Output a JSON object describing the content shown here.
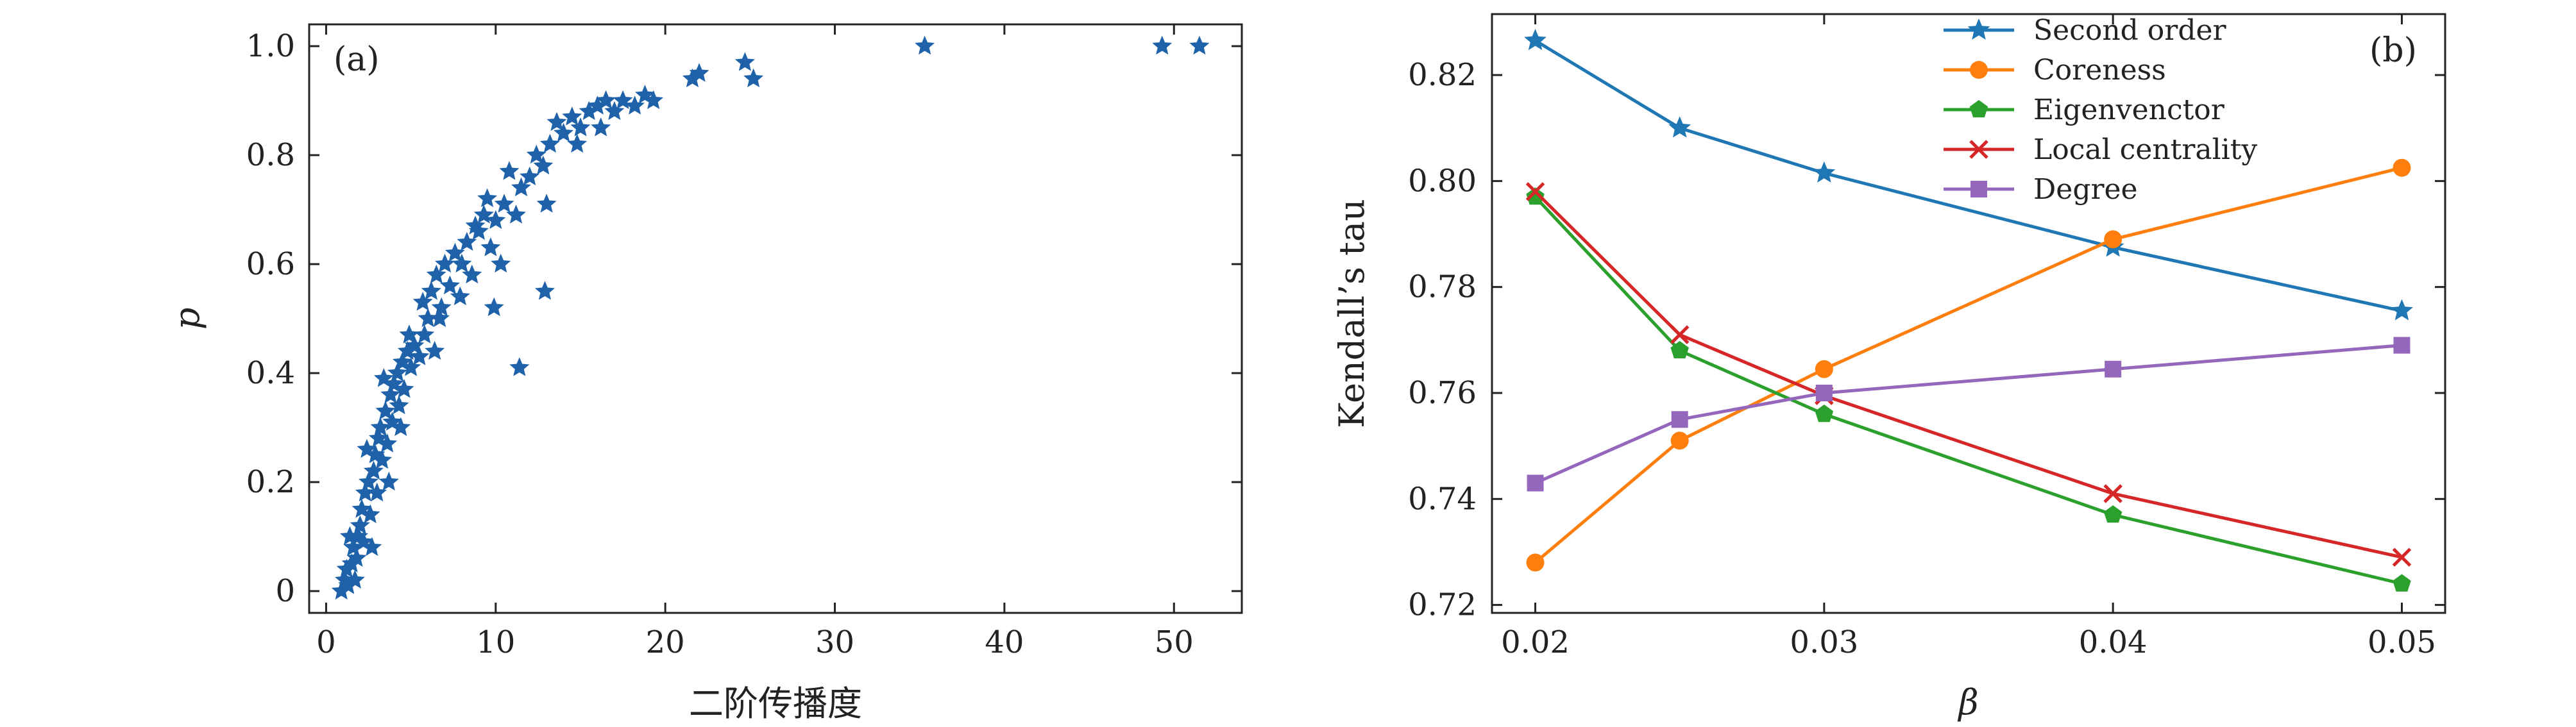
{
  "chart_data": [
    {
      "type": "scatter",
      "panel_label": "(a)",
      "xlabel": "二阶传播度",
      "ylabel": "p",
      "xlim": [
        -1,
        54
      ],
      "ylim": [
        -0.04,
        1.04
      ],
      "xticks": [
        0,
        10,
        20,
        30,
        40,
        50
      ],
      "yticks": [
        0,
        0.2,
        0.4,
        0.6,
        0.8,
        1.0
      ],
      "ytick_labels": [
        "0",
        "0.2",
        "0.4",
        "0.6",
        "0.8",
        "1.0"
      ],
      "grid": false,
      "marker": "star",
      "color": "#1f62aa",
      "points": [
        [
          0.9,
          0.0
        ],
        [
          1.1,
          0.02
        ],
        [
          1.2,
          0.04
        ],
        [
          1.3,
          0.01
        ],
        [
          1.5,
          0.05
        ],
        [
          1.6,
          0.08
        ],
        [
          1.8,
          0.06
        ],
        [
          1.9,
          0.1
        ],
        [
          2.0,
          0.12
        ],
        [
          2.1,
          0.15
        ],
        [
          2.2,
          0.09
        ],
        [
          2.3,
          0.18
        ],
        [
          2.5,
          0.2
        ],
        [
          2.6,
          0.14
        ],
        [
          2.8,
          0.22
        ],
        [
          2.9,
          0.25
        ],
        [
          3.0,
          0.18
        ],
        [
          3.1,
          0.28
        ],
        [
          3.2,
          0.3
        ],
        [
          3.3,
          0.24
        ],
        [
          3.5,
          0.33
        ],
        [
          3.6,
          0.27
        ],
        [
          3.8,
          0.36
        ],
        [
          3.9,
          0.31
        ],
        [
          4.0,
          0.38
        ],
        [
          4.2,
          0.4
        ],
        [
          4.3,
          0.34
        ],
        [
          4.5,
          0.42
        ],
        [
          4.6,
          0.37
        ],
        [
          4.8,
          0.44
        ],
        [
          5.0,
          0.41
        ],
        [
          5.2,
          0.45
        ],
        [
          5.5,
          0.43
        ],
        [
          5.8,
          0.47
        ],
        [
          6.0,
          0.5
        ],
        [
          6.2,
          0.55
        ],
        [
          6.5,
          0.58
        ],
        [
          6.8,
          0.52
        ],
        [
          7.0,
          0.6
        ],
        [
          7.3,
          0.56
        ],
        [
          7.6,
          0.62
        ],
        [
          8.0,
          0.6
        ],
        [
          8.3,
          0.64
        ],
        [
          8.6,
          0.58
        ],
        [
          9.0,
          0.66
        ],
        [
          9.3,
          0.69
        ],
        [
          9.7,
          0.63
        ],
        [
          10.0,
          0.68
        ],
        [
          10.5,
          0.71
        ],
        [
          10.8,
          0.77
        ],
        [
          11.2,
          0.69
        ],
        [
          11.5,
          0.74
        ],
        [
          12.0,
          0.76
        ],
        [
          12.4,
          0.8
        ],
        [
          12.8,
          0.78
        ],
        [
          13.2,
          0.82
        ],
        [
          13.6,
          0.86
        ],
        [
          14.0,
          0.84
        ],
        [
          14.5,
          0.87
        ],
        [
          15.0,
          0.85
        ],
        [
          15.5,
          0.88
        ],
        [
          16.0,
          0.89
        ],
        [
          16.5,
          0.9
        ],
        [
          17.0,
          0.88
        ],
        [
          17.5,
          0.9
        ],
        [
          18.2,
          0.89
        ],
        [
          18.8,
          0.91
        ],
        [
          19.3,
          0.9
        ],
        [
          21.6,
          0.94
        ],
        [
          22.0,
          0.95
        ],
        [
          24.7,
          0.97
        ],
        [
          25.2,
          0.94
        ],
        [
          35.3,
          1.0
        ],
        [
          49.3,
          1.0
        ],
        [
          51.5,
          1.0
        ],
        [
          12.9,
          0.55
        ],
        [
          11.4,
          0.41
        ],
        [
          9.9,
          0.52
        ],
        [
          10.3,
          0.6
        ],
        [
          16.2,
          0.85
        ],
        [
          14.8,
          0.82
        ],
        [
          13.0,
          0.71
        ],
        [
          7.9,
          0.54
        ],
        [
          6.7,
          0.5
        ],
        [
          4.4,
          0.3
        ],
        [
          3.7,
          0.2
        ],
        [
          2.7,
          0.08
        ],
        [
          1.7,
          0.02
        ],
        [
          1.4,
          0.1
        ],
        [
          2.4,
          0.26
        ],
        [
          3.4,
          0.39
        ],
        [
          4.9,
          0.47
        ],
        [
          5.7,
          0.53
        ],
        [
          6.4,
          0.44
        ],
        [
          8.8,
          0.67
        ],
        [
          9.5,
          0.72
        ]
      ]
    },
    {
      "type": "line",
      "panel_label": "(b)",
      "xlabel": "β",
      "ylabel": "Kendall’s tau",
      "xlim": [
        0.0185,
        0.0515
      ],
      "ylim": [
        0.7185,
        0.8315
      ],
      "xticks": [
        0.02,
        0.03,
        0.04,
        0.05
      ],
      "xtick_labels": [
        "0.02",
        "0.03",
        "0.04",
        "0.05"
      ],
      "yticks": [
        0.72,
        0.74,
        0.76,
        0.78,
        0.8,
        0.82
      ],
      "ytick_labels": [
        "0.72",
        "0.74",
        "0.76",
        "0.78",
        "0.80",
        "0.82"
      ],
      "grid": false,
      "legend_position": "top-center",
      "x": [
        0.02,
        0.025,
        0.03,
        0.04,
        0.05
      ],
      "series": [
        {
          "name": "Second order",
          "color": "#1f77b4",
          "marker": "star",
          "values": [
            0.8265,
            0.81,
            0.8015,
            0.7875,
            0.7755
          ]
        },
        {
          "name": "Coreness",
          "color": "#ff7f0e",
          "marker": "circle",
          "values": [
            0.728,
            0.751,
            0.7645,
            0.789,
            0.8025
          ]
        },
        {
          "name": "Eigenvenctor",
          "color": "#2ca02c",
          "marker": "pentagon",
          "values": [
            0.797,
            0.768,
            0.756,
            0.737,
            0.724
          ]
        },
        {
          "name": "Local centrality",
          "color": "#d62728",
          "marker": "x",
          "values": [
            0.798,
            0.771,
            0.7595,
            0.741,
            0.729
          ]
        },
        {
          "name": "Degree",
          "color": "#9467bd",
          "marker": "square",
          "values": [
            0.743,
            0.755,
            0.76,
            0.7645,
            0.769
          ]
        }
      ]
    }
  ]
}
